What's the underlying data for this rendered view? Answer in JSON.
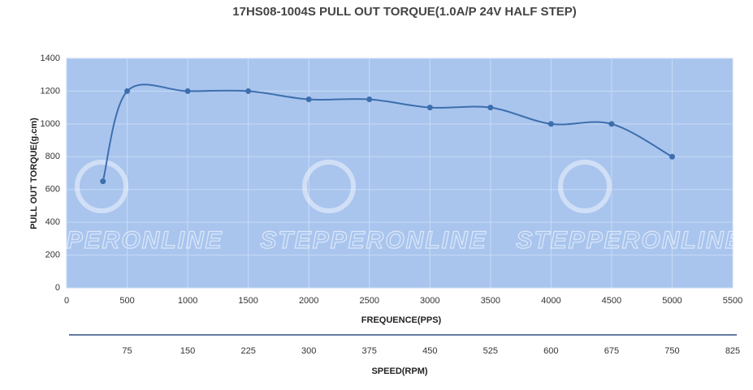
{
  "chart_data": {
    "type": "line",
    "title": "17HS08-1004S PULL OUT TORQUE(1.0A/P 24V HALF STEP)",
    "x_label": "FREQUENCE(PPS)",
    "y_label": "PULL OUT TORQUE(g.cm)",
    "x2_label": "SPEED(RPM)",
    "watermark": "STEPPERONLINE",
    "x": [
      300,
      500,
      1000,
      1500,
      2000,
      2500,
      3000,
      3500,
      4000,
      4500,
      5000
    ],
    "series": [
      {
        "name": "Pull out torque",
        "color": "#3d6fae",
        "values": [
          650,
          1200,
          1200,
          1200,
          1150,
          1150,
          1100,
          1100,
          1000,
          1000,
          800
        ]
      }
    ],
    "xlim": [
      0,
      5500
    ],
    "xticks": [
      0,
      500,
      1000,
      1500,
      2000,
      2500,
      3000,
      3500,
      4000,
      4500,
      5000,
      5500
    ],
    "ylim": [
      0,
      1400
    ],
    "yticks": [
      0,
      200,
      400,
      600,
      800,
      1000,
      1200,
      1400
    ],
    "x2lim": [
      0,
      825
    ],
    "x2ticks": [
      75,
      150,
      225,
      300,
      375,
      450,
      525,
      600,
      675,
      750,
      825
    ],
    "grid": true,
    "background": "#a9c5ee"
  }
}
